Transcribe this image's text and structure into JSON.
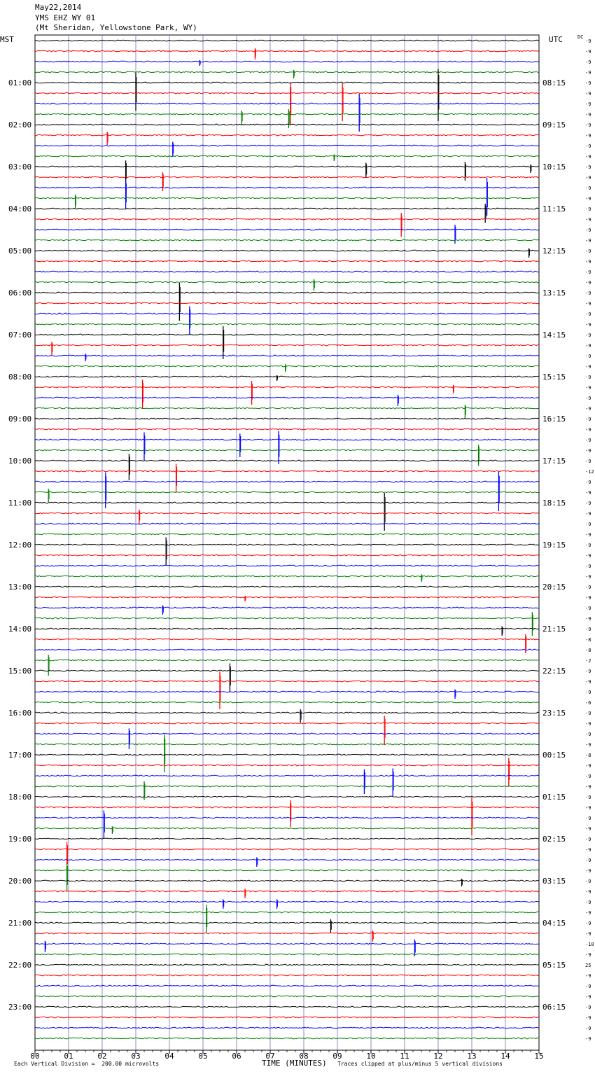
{
  "header": {
    "date": "May22,2014",
    "station": "YMS EHZ WY 01",
    "location": "(Mt Sheridan, Yellowstone Park, WY)"
  },
  "left_axis_label": "MST",
  "right_axis_label": "UTC",
  "dc_label": "DC",
  "footer": {
    "scale_note": "Each Vertical Division =  200.00 microvolts",
    "xlabel": "TIME (MINUTES)",
    "clip_note": "Traces clipped at plus/minus 5 vertical divisions"
  },
  "colors": {
    "trace_cycle": [
      "#000000",
      "#ff0000",
      "#0000ff",
      "#008000"
    ],
    "grid": "#7070b0"
  },
  "chart_data": {
    "type": "line",
    "title": "YMS EHZ WY 01",
    "xlabel": "TIME (MINUTES)",
    "xlim": [
      0,
      15
    ],
    "x_ticks": [
      "00",
      "01",
      "02",
      "03",
      "04",
      "05",
      "06",
      "07",
      "08",
      "09",
      "10",
      "11",
      "12",
      "13",
      "14",
      "15"
    ],
    "rows_per_hour": 4,
    "row_minutes": 15,
    "n_rows": 96,
    "left_hour_labels": [
      "01:00",
      "02:00",
      "03:00",
      "04:00",
      "05:00",
      "06:00",
      "07:00",
      "08:00",
      "09:00",
      "10:00",
      "11:00",
      "12:00",
      "13:00",
      "14:00",
      "15:00",
      "16:00",
      "17:00",
      "18:00",
      "19:00",
      "20:00",
      "21:00",
      "22:00",
      "23:00"
    ],
    "right_hour_labels": [
      "08:15",
      "09:15",
      "10:15",
      "11:15",
      "12:15",
      "13:15",
      "14:15",
      "15:15",
      "16:15",
      "17:15",
      "18:15",
      "19:15",
      "20:15",
      "21:15",
      "22:15",
      "23:15",
      "00:15",
      "01:15",
      "02:15",
      "03:15",
      "04:15",
      "05:15",
      "06:15"
    ],
    "dc_offsets": [
      "-9",
      "-9",
      "-9",
      "-9",
      "-9",
      "-9",
      "-9",
      "-9",
      "-9",
      "-9",
      "-9",
      "-9",
      "-9",
      "-9",
      "-9",
      "-9",
      "-9",
      "-9",
      "-9",
      "-9",
      "-9",
      "-9",
      "-9",
      "-9",
      "-9",
      "-9",
      "-9",
      "-9",
      "-9",
      "-9",
      "-9",
      "-9",
      "-9",
      "-9",
      "-9",
      "-9",
      "-9",
      "-9",
      "-9",
      "-9",
      "-9",
      "-12",
      "-9",
      "-9",
      "-9",
      "-9",
      "-9",
      "-9",
      "-9",
      "-9",
      "-9",
      "-9",
      "-9",
      "-9",
      "-9",
      "-9",
      "-9",
      "-8",
      "-8",
      "-2",
      "-9",
      "-9",
      "-9",
      "-6",
      "-9",
      "-9",
      "-9",
      "-9",
      "-8",
      "-9",
      "-9",
      "-9",
      "-9",
      "-9",
      "-9",
      "-9",
      "-9",
      "-9",
      "-9",
      "-9",
      "-9",
      "-9",
      "-9",
      "-9",
      "-9",
      "-9",
      "-10",
      "-9",
      "25",
      "-9",
      "-9",
      "-9",
      "-9",
      "-9",
      "-9",
      "-9"
    ],
    "events": [
      {
        "row": 1,
        "minute": 6.55,
        "amp": 12
      },
      {
        "row": 2,
        "minute": 4.9,
        "amp": 6
      },
      {
        "row": 3,
        "minute": 7.7,
        "amp": 9
      },
      {
        "row": 4,
        "minute": 3.0,
        "amp": 40
      },
      {
        "row": 4,
        "minute": 12.0,
        "amp": 55
      },
      {
        "row": 5,
        "minute": 7.6,
        "amp": 45
      },
      {
        "row": 5,
        "minute": 9.15,
        "amp": 40
      },
      {
        "row": 6,
        "minute": 9.65,
        "amp": 40
      },
      {
        "row": 7,
        "minute": 6.15,
        "amp": 15
      },
      {
        "row": 7,
        "minute": 7.55,
        "amp": 20
      },
      {
        "row": 9,
        "minute": 2.15,
        "amp": 14
      },
      {
        "row": 10,
        "minute": 4.1,
        "amp": 16
      },
      {
        "row": 11,
        "minute": 8.9,
        "amp": 7
      },
      {
        "row": 12,
        "minute": 2.7,
        "amp": 25
      },
      {
        "row": 12,
        "minute": 12.8,
        "amp": 20
      },
      {
        "row": 12,
        "minute": 14.75,
        "amp": 9
      },
      {
        "row": 12,
        "minute": 9.85,
        "amp": 16
      },
      {
        "row": 13,
        "minute": 3.8,
        "amp": 20
      },
      {
        "row": 14,
        "minute": 2.7,
        "amp": 30
      },
      {
        "row": 14,
        "minute": 13.45,
        "amp": 40
      },
      {
        "row": 15,
        "minute": 1.2,
        "amp": 15
      },
      {
        "row": 16,
        "minute": 13.4,
        "amp": 20
      },
      {
        "row": 17,
        "minute": 10.9,
        "amp": 25
      },
      {
        "row": 18,
        "minute": 12.5,
        "amp": 20
      },
      {
        "row": 20,
        "minute": 14.7,
        "amp": 10
      },
      {
        "row": 23,
        "minute": 8.3,
        "amp": 12
      },
      {
        "row": 24,
        "minute": 4.3,
        "amp": 40
      },
      {
        "row": 26,
        "minute": 4.6,
        "amp": 30
      },
      {
        "row": 28,
        "minute": 5.6,
        "amp": 35
      },
      {
        "row": 29,
        "minute": 0.5,
        "amp": 14
      },
      {
        "row": 30,
        "minute": 1.5,
        "amp": 8
      },
      {
        "row": 31,
        "minute": 7.45,
        "amp": 8
      },
      {
        "row": 32,
        "minute": 7.2,
        "amp": 6
      },
      {
        "row": 33,
        "minute": 3.2,
        "amp": 30
      },
      {
        "row": 33,
        "minute": 6.45,
        "amp": 25
      },
      {
        "row": 33,
        "minute": 12.45,
        "amp": 9
      },
      {
        "row": 34,
        "minute": 10.8,
        "amp": 12
      },
      {
        "row": 35,
        "minute": 12.8,
        "amp": 14
      },
      {
        "row": 38,
        "minute": 3.25,
        "amp": 30
      },
      {
        "row": 38,
        "minute": 6.1,
        "amp": 25
      },
      {
        "row": 38,
        "minute": 7.25,
        "amp": 35
      },
      {
        "row": 39,
        "minute": 13.2,
        "amp": 22
      },
      {
        "row": 40,
        "minute": 2.8,
        "amp": 28
      },
      {
        "row": 41,
        "minute": 4.2,
        "amp": 30
      },
      {
        "row": 42,
        "minute": 2.1,
        "amp": 38
      },
      {
        "row": 42,
        "minute": 13.8,
        "amp": 42
      },
      {
        "row": 43,
        "minute": 0.4,
        "amp": 14
      },
      {
        "row": 44,
        "minute": 10.4,
        "amp": 40
      },
      {
        "row": 45,
        "minute": 3.1,
        "amp": 15
      },
      {
        "row": 48,
        "minute": 3.9,
        "amp": 30
      },
      {
        "row": 51,
        "minute": 11.5,
        "amp": 8
      },
      {
        "row": 53,
        "minute": 6.25,
        "amp": 6
      },
      {
        "row": 54,
        "minute": 3.8,
        "amp": 10
      },
      {
        "row": 55,
        "minute": 14.8,
        "amp": 25
      },
      {
        "row": 56,
        "minute": 13.9,
        "amp": 10
      },
      {
        "row": 57,
        "minute": 14.6,
        "amp": 20
      },
      {
        "row": 59,
        "minute": 0.4,
        "amp": 22
      },
      {
        "row": 60,
        "minute": 5.8,
        "amp": 30
      },
      {
        "row": 61,
        "minute": 5.5,
        "amp": 40
      },
      {
        "row": 62,
        "minute": 12.5,
        "amp": 10
      },
      {
        "row": 64,
        "minute": 7.9,
        "amp": 14
      },
      {
        "row": 65,
        "minute": 10.4,
        "amp": 30
      },
      {
        "row": 66,
        "minute": 2.8,
        "amp": 22
      },
      {
        "row": 67,
        "minute": 3.85,
        "amp": 40
      },
      {
        "row": 69,
        "minute": 14.1,
        "amp": 30
      },
      {
        "row": 70,
        "minute": 9.8,
        "amp": 26
      },
      {
        "row": 70,
        "minute": 10.65,
        "amp": 30
      },
      {
        "row": 71,
        "minute": 3.25,
        "amp": 20
      },
      {
        "row": 73,
        "minute": 7.6,
        "amp": 28
      },
      {
        "row": 73,
        "minute": 13.0,
        "amp": 40
      },
      {
        "row": 74,
        "minute": 2.05,
        "amp": 30
      },
      {
        "row": 75,
        "minute": 2.3,
        "amp": 8
      },
      {
        "row": 77,
        "minute": 0.95,
        "amp": 30
      },
      {
        "row": 78,
        "minute": 6.6,
        "amp": 10
      },
      {
        "row": 79,
        "minute": 0.95,
        "amp": 30
      },
      {
        "row": 80,
        "minute": 12.7,
        "amp": 8
      },
      {
        "row": 81,
        "minute": 6.25,
        "amp": 10
      },
      {
        "row": 82,
        "minute": 7.2,
        "amp": 10
      },
      {
        "row": 82,
        "minute": 5.6,
        "amp": 10
      },
      {
        "row": 83,
        "minute": 5.1,
        "amp": 30
      },
      {
        "row": 84,
        "minute": 8.8,
        "amp": 14
      },
      {
        "row": 85,
        "minute": 10.05,
        "amp": 12
      },
      {
        "row": 86,
        "minute": 0.3,
        "amp": 12
      },
      {
        "row": 86,
        "minute": 11.3,
        "amp": 18
      }
    ]
  }
}
